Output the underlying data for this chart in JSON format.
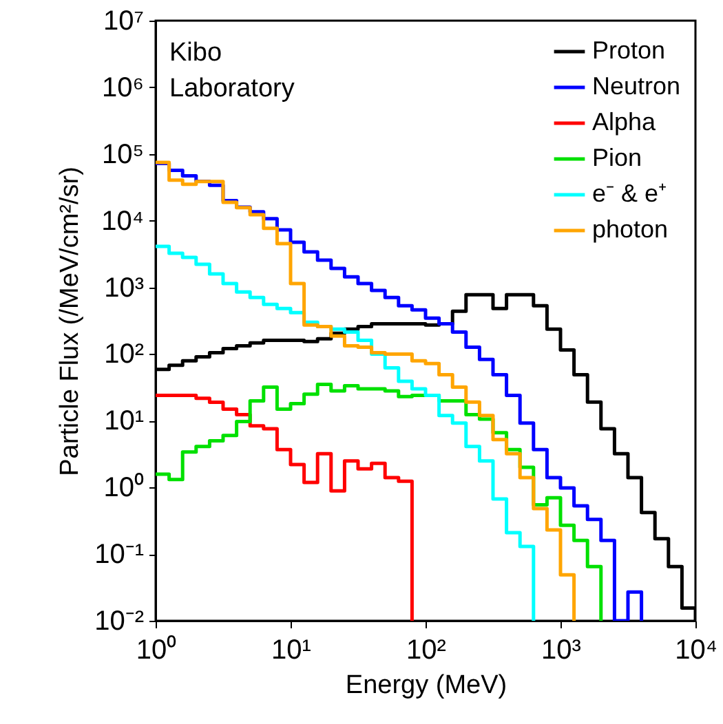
{
  "chart_data": {
    "type": "step",
    "xlabel": "Energy (MeV)",
    "ylabel": "Particle Flux (/MeV/cm²/sr)",
    "log": "xy",
    "grid": false,
    "legend": "top right",
    "marker": "none",
    "line_style": "solid",
    "annotations": [
      "Kibo Laboratory"
    ],
    "xlim": [
      1,
      10000
    ],
    "ylim": [
      0.01,
      10000000
    ],
    "xticks": [
      {
        "value": 1,
        "label": "10⁰"
      },
      {
        "value": 10,
        "label": "10¹"
      },
      {
        "value": 100,
        "label": "10²"
      },
      {
        "value": 1000,
        "label": "10³"
      },
      {
        "value": 10000,
        "label": "10⁴"
      }
    ],
    "yticks": [
      {
        "value": 0.01,
        "label": "10⁻²"
      },
      {
        "value": 0.1,
        "label": "10⁻¹"
      },
      {
        "value": 1,
        "label": "10⁰"
      },
      {
        "value": 10,
        "label": "10¹"
      },
      {
        "value": 100,
        "label": "10²"
      },
      {
        "value": 1000,
        "label": "10³"
      },
      {
        "value": 10000,
        "label": "10⁴"
      },
      {
        "value": 100000,
        "label": "10⁵"
      },
      {
        "value": 1000000,
        "label": "10⁶"
      },
      {
        "value": 10000000,
        "label": "10⁷"
      }
    ],
    "x": [
      1,
      1.259,
      1.585,
      1.995,
      2.512,
      3.162,
      3.981,
      5.012,
      6.31,
      7.943,
      10,
      12.59,
      15.85,
      19.95,
      25.12,
      31.62,
      39.81,
      50.12,
      63.1,
      79.43,
      100,
      125.9,
      158.5,
      199.5,
      251.2,
      316.2,
      398.1,
      501.2,
      631,
      794.3,
      1000,
      1259,
      1585,
      1995,
      2512,
      3162,
      3981,
      5012,
      6310,
      7943,
      10000
    ],
    "series": [
      {
        "name": "Proton",
        "color": "#000000",
        "values": [
          59,
          68,
          79,
          91,
          105,
          121,
          133,
          147,
          161,
          161,
          161,
          154,
          169,
          205,
          236,
          259,
          285,
          285,
          285,
          285,
          272,
          285,
          438,
          777,
          777,
          482,
          777,
          777,
          530,
          236,
          115,
          49,
          19,
          7.6,
          3.2,
          1.4,
          0.42,
          0.17,
          0.065,
          0.0155,
          0.01
        ]
      },
      {
        "name": "Neutron",
        "color": "#0000ff",
        "values": [
          72000,
          57000,
          47000,
          39000,
          34000,
          20000,
          16000,
          13600,
          10700,
          7300,
          4750,
          3400,
          2560,
          1920,
          1440,
          1140,
          900,
          706,
          530,
          460,
          345,
          285,
          214,
          127,
          83,
          49,
          24,
          9.2,
          3.7,
          1.4,
          0.98,
          0.53,
          0.33,
          0.16,
          0.01,
          0.027,
          0.01,
          null,
          null,
          null,
          null
        ]
      },
      {
        "name": "Alpha",
        "color": "#ff0000",
        "values": [
          24,
          24,
          24,
          21.7,
          18.9,
          14.9,
          12.3,
          8.4,
          7.6,
          3.7,
          2.2,
          1.19,
          3.2,
          0.89,
          2.5,
          1.9,
          2.3,
          1.4,
          1.24,
          0.01,
          null,
          null,
          null,
          null,
          null,
          null,
          null,
          null,
          null,
          null,
          null,
          null,
          null,
          null,
          null,
          null,
          null,
          null,
          null,
          null,
          null
        ]
      },
      {
        "name": "Pion",
        "color": "#00e000",
        "values": [
          1.58,
          1.31,
          3.4,
          4.1,
          5.0,
          6.0,
          9.7,
          19.8,
          32,
          14.9,
          18,
          25,
          35,
          28,
          33.5,
          30,
          30,
          28,
          23,
          24,
          24,
          19.8,
          19.8,
          12.3,
          10.6,
          6.6,
          3.7,
          2.0,
          0.55,
          0.7,
          0.27,
          0.16,
          0.065,
          0.01,
          null,
          null,
          null,
          null,
          null,
          null,
          null
        ]
      },
      {
        "name": "e⁻ & e⁺",
        "color": "#00ffff",
        "values": [
          4120,
          3250,
          2810,
          2220,
          1590,
          1140,
          855,
          706,
          556,
          482,
          418,
          299,
          259,
          236,
          214,
          161,
          100,
          62,
          39,
          30,
          24,
          12,
          9.2,
          4.1,
          2.5,
          0.67,
          0.21,
          0.13,
          0.01,
          null,
          null,
          null,
          null,
          null,
          null,
          null,
          null,
          null,
          null,
          null,
          null
        ]
      },
      {
        "name": "photon",
        "color": "#ffa500",
        "values": [
          75000,
          40600,
          35200,
          38700,
          38700,
          18900,
          15700,
          12300,
          7700,
          4530,
          1140,
          272,
          259,
          186,
          133,
          127,
          105,
          100,
          100,
          79,
          72,
          49,
          32,
          19,
          12,
          5.2,
          3.2,
          1.4,
          0.48,
          0.23,
          0.049,
          0.01,
          null,
          null,
          null,
          null,
          null,
          null,
          null,
          null,
          null
        ]
      }
    ]
  }
}
